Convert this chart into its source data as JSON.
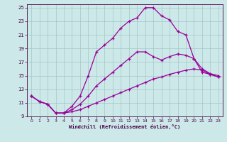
{
  "xlabel": "Windchill (Refroidissement éolien,°C)",
  "ylabel": "",
  "background_color": "#cce8e8",
  "line_color": "#990099",
  "xlim": [
    -0.5,
    23.5
  ],
  "ylim": [
    9,
    25.5
  ],
  "xticks": [
    0,
    1,
    2,
    3,
    4,
    5,
    6,
    7,
    8,
    9,
    10,
    11,
    12,
    13,
    14,
    15,
    16,
    17,
    18,
    19,
    20,
    21,
    22,
    23
  ],
  "yticks": [
    9,
    11,
    13,
    15,
    17,
    19,
    21,
    23,
    25
  ],
  "line1_x": [
    0,
    1,
    2,
    3,
    4,
    5,
    6,
    7,
    8,
    9,
    10,
    11,
    12,
    13,
    14,
    15,
    16,
    17,
    18,
    19,
    20,
    21,
    22,
    23
  ],
  "line1_y": [
    12.0,
    11.2,
    10.8,
    9.5,
    9.5,
    10.5,
    12.0,
    15.0,
    18.5,
    19.5,
    20.5,
    22.0,
    23.0,
    23.5,
    25.0,
    25.0,
    23.8,
    23.2,
    21.5,
    21.0,
    17.5,
    15.5,
    15.2,
    14.8
  ],
  "line2_x": [
    0,
    1,
    2,
    3,
    4,
    5,
    6,
    7,
    8,
    9,
    10,
    11,
    12,
    13,
    14,
    15,
    16,
    17,
    18,
    19,
    20,
    21,
    22,
    23
  ],
  "line2_y": [
    12.0,
    11.2,
    10.8,
    9.5,
    9.5,
    10.0,
    10.8,
    12.0,
    13.5,
    14.5,
    15.5,
    16.5,
    17.5,
    18.5,
    18.5,
    17.8,
    17.3,
    17.8,
    18.2,
    18.0,
    17.5,
    16.0,
    15.3,
    15.0
  ],
  "line3_x": [
    0,
    1,
    2,
    3,
    4,
    5,
    6,
    7,
    8,
    9,
    10,
    11,
    12,
    13,
    14,
    15,
    16,
    17,
    18,
    19,
    20,
    21,
    22,
    23
  ],
  "line3_y": [
    12.0,
    11.2,
    10.8,
    9.5,
    9.5,
    9.7,
    10.0,
    10.5,
    11.0,
    11.5,
    12.0,
    12.5,
    13.0,
    13.5,
    14.0,
    14.5,
    14.8,
    15.2,
    15.5,
    15.8,
    16.0,
    15.8,
    15.2,
    14.8
  ]
}
